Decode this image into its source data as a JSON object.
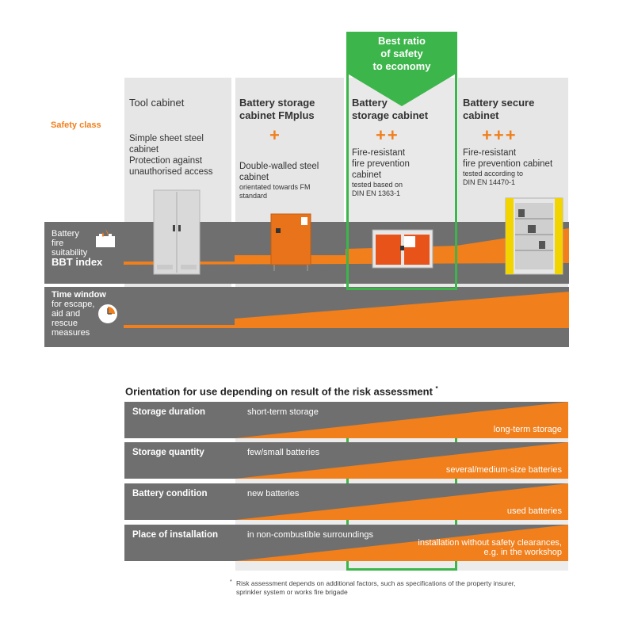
{
  "top": {
    "safety_class_label": "Safety class",
    "best_ratio": "Best ratio\nof safety\nto economy",
    "columns": [
      {
        "title": "Tool cabinet",
        "plus": "",
        "desc_lines": [
          "Simple sheet steel",
          "cabinet",
          "Protection against",
          "unauthorised access"
        ],
        "small_lines": []
      },
      {
        "title": "Battery storage\ncabinet FMplus",
        "plus": "+",
        "desc_lines": [
          "Double-walled steel",
          "cabinet"
        ],
        "small_lines": [
          "orientated towards FM",
          "standard"
        ]
      },
      {
        "title": "Battery\nstorage cabinet",
        "plus": "++",
        "desc_lines": [
          "Fire-resistant",
          "fire prevention",
          "cabinet"
        ],
        "small_lines": [
          "tested based on",
          "DIN EN 1363-1"
        ]
      },
      {
        "title": "Battery secure\ncabinet",
        "plus": "+++",
        "desc_lines": [
          "Fire-resistant",
          "fire prevention cabinet"
        ],
        "small_lines": [
          "tested according to",
          "DIN EN 14470-1"
        ]
      }
    ],
    "band1": {
      "line1": "Battery",
      "line2": "fire",
      "line3": "suitability",
      "line4": "BBT index"
    },
    "band2": {
      "line1": "Time window",
      "line2": "for escape,",
      "line3": "aid and",
      "line4": "rescue",
      "line5": "measures"
    }
  },
  "orientation": {
    "title": "Orientation for use depending on result of the risk assessment",
    "title_mark": "*",
    "rows": [
      {
        "label": "Storage duration",
        "left": "short-term storage",
        "right_lines": [
          "long-term storage"
        ]
      },
      {
        "label": "Storage quantity",
        "left": "few/small batteries",
        "right_lines": [
          "several/medium-size batteries"
        ]
      },
      {
        "label": "Battery condition",
        "left": "new batteries",
        "right_lines": [
          "used batteries"
        ]
      },
      {
        "label": "Place of installation",
        "left": "in non-combustible surroundings",
        "right_lines": [
          "installation without safety clearances,",
          "e.g. in the workshop"
        ]
      }
    ]
  },
  "footnote": {
    "mark": "*",
    "lines": [
      "Risk assessment depends on additional factors, such as specifications of the property insurer,",
      "sprinkler system or works fire brigade"
    ]
  },
  "colors": {
    "orange": "#f07f1c",
    "green": "#3cb54a",
    "band_gray": "#6f6f6f",
    "column_gray": "#e6e6e6"
  }
}
